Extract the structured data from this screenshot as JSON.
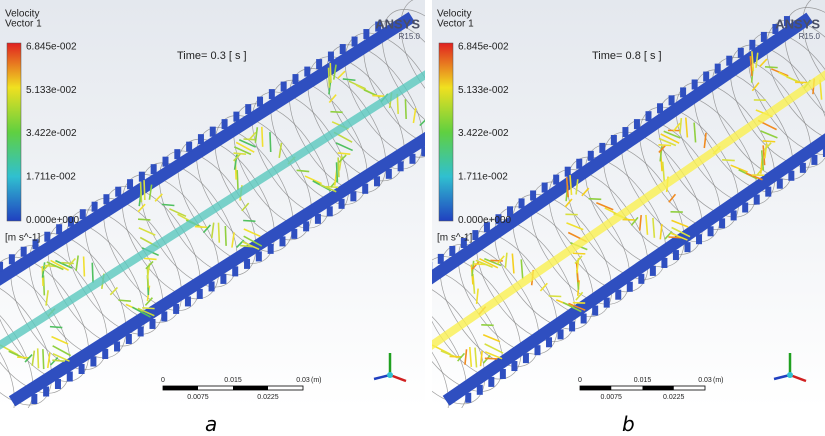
{
  "panels": [
    {
      "legend_title": "Velocity",
      "legend_subtitle": "Vector 1",
      "legend_ticks": [
        "6.845e-002",
        "5.133e-002",
        "3.422e-002",
        "1.711e-002",
        "0.000e+000"
      ],
      "legend_unit": "[m s^-1]",
      "brand": "ANSYS",
      "version": "R15.0",
      "time": "Time= 0.3 [ s ]",
      "scale_top": [
        "0",
        "0.015",
        "0.03",
        "(m)"
      ],
      "scale_bottom": [
        "0.0075",
        "0.0225"
      ],
      "caption": "a"
    },
    {
      "legend_title": "Velocity",
      "legend_subtitle": "Vector 1",
      "legend_ticks": [
        "6.845e-002",
        "5.133e-002",
        "3.422e-002",
        "1.711e-002",
        "0.000e+000"
      ],
      "legend_unit": "[m s^-1]",
      "brand": "ANSYS",
      "version": "R15.0",
      "time": "Time= 0.8 [ s ]",
      "scale_top": [
        "0",
        "0.015",
        "0.03",
        "(m)"
      ],
      "scale_bottom": [
        "0.0075",
        "0.0225"
      ],
      "caption": "b"
    }
  ]
}
